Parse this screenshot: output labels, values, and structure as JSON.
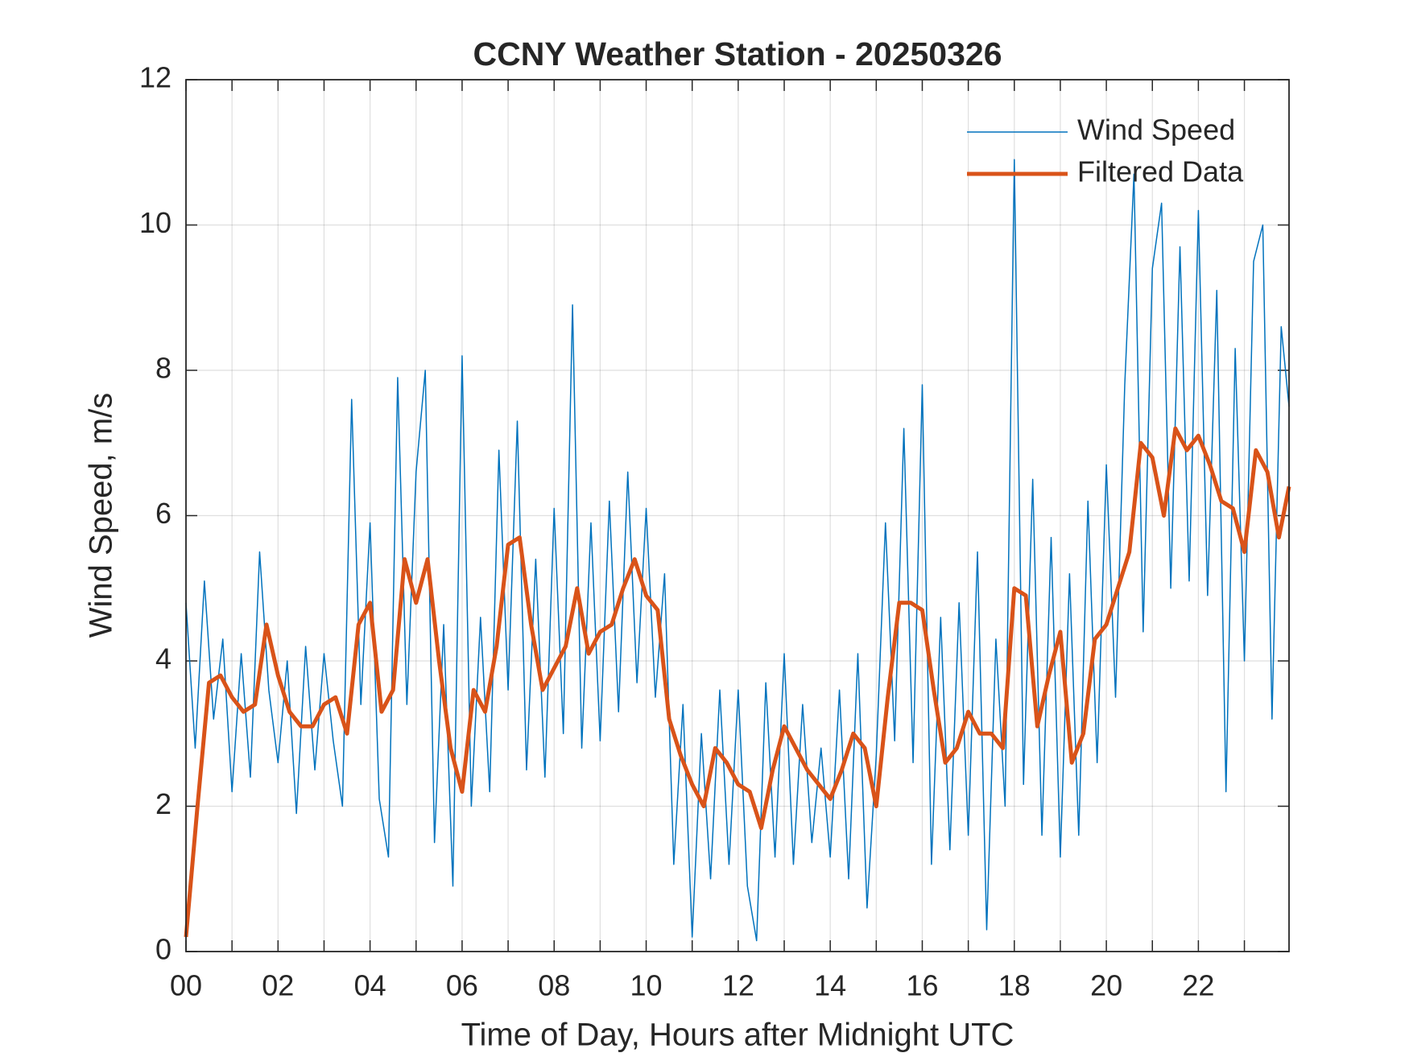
{
  "chart_data": {
    "type": "line",
    "title": "CCNY Weather Station - 20250326",
    "x_label": "Time of Day, Hours after Midnight UTC",
    "y_label": "Wind Speed, m/s",
    "xlim": [
      0,
      23.97
    ],
    "ylim": [
      0,
      12
    ],
    "xticks": [
      {
        "value": 0,
        "label": "00"
      },
      {
        "value": 2,
        "label": "02"
      },
      {
        "value": 4,
        "label": "04"
      },
      {
        "value": 6,
        "label": "06"
      },
      {
        "value": 8,
        "label": "08"
      },
      {
        "value": 10,
        "label": "10"
      },
      {
        "value": 12,
        "label": "12"
      },
      {
        "value": 14,
        "label": "14"
      },
      {
        "value": 16,
        "label": "16"
      },
      {
        "value": 18,
        "label": "18"
      },
      {
        "value": 20,
        "label": "20"
      },
      {
        "value": 22,
        "label": "22"
      }
    ],
    "xminorticks": [
      1,
      3,
      5,
      7,
      9,
      11,
      13,
      15,
      17,
      19,
      21,
      23
    ],
    "yticks": [
      0,
      2,
      4,
      6,
      8,
      10,
      12
    ],
    "grid": true,
    "legend": "northeast",
    "series": [
      {
        "name": "Wind Speed",
        "color": "#0072bd",
        "width": 1.5,
        "x": [
          0,
          0.2,
          0.4,
          0.6,
          0.8,
          1,
          1.2,
          1.4,
          1.6,
          1.8,
          2,
          2.2,
          2.4,
          2.6,
          2.8,
          3,
          3.2,
          3.4,
          3.6,
          3.8,
          4,
          4.2,
          4.4,
          4.6,
          4.8,
          5,
          5.2,
          5.4,
          5.6,
          5.8,
          6,
          6.2,
          6.4,
          6.6,
          6.8,
          7,
          7.2,
          7.4,
          7.6,
          7.8,
          8,
          8.2,
          8.4,
          8.6,
          8.8,
          9,
          9.2,
          9.4,
          9.6,
          9.8,
          10,
          10.2,
          10.4,
          10.6,
          10.8,
          11,
          11.2,
          11.4,
          11.6,
          11.8,
          12,
          12.2,
          12.4,
          12.6,
          12.8,
          13,
          13.2,
          13.4,
          13.6,
          13.8,
          14,
          14.2,
          14.4,
          14.6,
          14.8,
          15,
          15.2,
          15.4,
          15.6,
          15.8,
          16,
          16.2,
          16.4,
          16.6,
          16.8,
          17,
          17.2,
          17.4,
          17.6,
          17.8,
          18,
          18.2,
          18.4,
          18.6,
          18.8,
          19,
          19.2,
          19.4,
          19.6,
          19.8,
          20,
          20.2,
          20.4,
          20.6,
          20.8,
          21,
          21.2,
          21.4,
          21.6,
          21.8,
          22,
          22.2,
          22.4,
          22.6,
          22.8,
          23,
          23.2,
          23.4,
          23.6,
          23.8,
          23.97
        ],
        "values": [
          4.8,
          2.8,
          5.1,
          3.2,
          4.3,
          2.2,
          4.1,
          2.4,
          5.5,
          3.6,
          2.6,
          4.0,
          1.9,
          4.2,
          2.5,
          4.1,
          2.9,
          2.0,
          7.6,
          3.4,
          5.9,
          2.1,
          1.3,
          7.9,
          3.4,
          6.6,
          8.0,
          1.5,
          4.5,
          0.9,
          8.2,
          2.0,
          4.6,
          2.2,
          6.9,
          3.6,
          7.3,
          2.5,
          5.4,
          2.4,
          6.1,
          3.0,
          8.9,
          2.8,
          5.9,
          2.9,
          6.2,
          3.3,
          6.6,
          3.7,
          6.1,
          3.5,
          5.2,
          1.2,
          3.4,
          0.2,
          3.0,
          1.0,
          3.6,
          1.2,
          3.6,
          0.9,
          0.15,
          3.7,
          1.3,
          4.1,
          1.2,
          3.4,
          1.5,
          2.8,
          1.3,
          3.6,
          1.0,
          4.1,
          0.6,
          2.7,
          5.9,
          2.9,
          7.2,
          2.6,
          7.8,
          1.2,
          4.6,
          1.4,
          4.8,
          1.6,
          5.5,
          0.3,
          4.3,
          2.0,
          10.9,
          2.3,
          6.5,
          1.6,
          5.7,
          1.3,
          5.2,
          1.6,
          6.2,
          2.6,
          6.7,
          3.5,
          7.8,
          10.7,
          4.4,
          9.4,
          10.3,
          5.0,
          9.7,
          5.1,
          10.2,
          4.9,
          9.1,
          2.2,
          8.3,
          4.0,
          9.5,
          10.0,
          3.2,
          8.6,
          7.5
        ]
      },
      {
        "name": "Filtered Data",
        "color": "#d95319",
        "width": 5,
        "x": [
          0,
          0.25,
          0.5,
          0.75,
          1,
          1.25,
          1.5,
          1.75,
          2,
          2.25,
          2.5,
          2.75,
          3,
          3.25,
          3.5,
          3.75,
          4,
          4.25,
          4.5,
          4.75,
          5,
          5.25,
          5.5,
          5.75,
          6,
          6.25,
          6.5,
          6.75,
          7,
          7.25,
          7.5,
          7.75,
          8,
          8.25,
          8.5,
          8.75,
          9,
          9.25,
          9.5,
          9.75,
          10,
          10.25,
          10.5,
          10.75,
          11,
          11.25,
          11.5,
          11.75,
          12,
          12.25,
          12.5,
          12.75,
          13,
          13.25,
          13.5,
          13.75,
          14,
          14.25,
          14.5,
          14.75,
          15,
          15.25,
          15.5,
          15.75,
          16,
          16.25,
          16.5,
          16.75,
          17,
          17.25,
          17.5,
          17.75,
          18,
          18.25,
          18.5,
          18.75,
          19,
          19.25,
          19.5,
          19.75,
          20,
          20.25,
          20.5,
          20.75,
          21,
          21.25,
          21.5,
          21.75,
          22,
          22.25,
          22.5,
          22.75,
          23,
          23.25,
          23.5,
          23.75,
          23.97
        ],
        "values": [
          0.2,
          2.0,
          3.7,
          3.8,
          3.5,
          3.3,
          3.4,
          4.5,
          3.8,
          3.3,
          3.1,
          3.1,
          3.4,
          3.5,
          3.0,
          4.5,
          4.8,
          3.3,
          3.6,
          5.4,
          4.8,
          5.4,
          4.0,
          2.8,
          2.2,
          3.6,
          3.3,
          4.2,
          5.6,
          5.7,
          4.5,
          3.6,
          3.9,
          4.2,
          5.0,
          4.1,
          4.4,
          4.5,
          5.0,
          5.4,
          4.9,
          4.7,
          3.2,
          2.7,
          2.3,
          2.0,
          2.8,
          2.6,
          2.3,
          2.2,
          1.7,
          2.5,
          3.1,
          2.8,
          2.5,
          2.3,
          2.1,
          2.5,
          3.0,
          2.8,
          2.0,
          3.5,
          4.8,
          4.8,
          4.7,
          3.6,
          2.6,
          2.8,
          3.3,
          3.0,
          3.0,
          2.8,
          5.0,
          4.9,
          3.1,
          3.8,
          4.4,
          2.6,
          3.0,
          4.3,
          4.5,
          5.0,
          5.5,
          7.0,
          6.8,
          6.0,
          7.2,
          6.9,
          7.1,
          6.7,
          6.2,
          6.1,
          5.5,
          6.9,
          6.6,
          5.7,
          6.4
        ]
      }
    ]
  }
}
